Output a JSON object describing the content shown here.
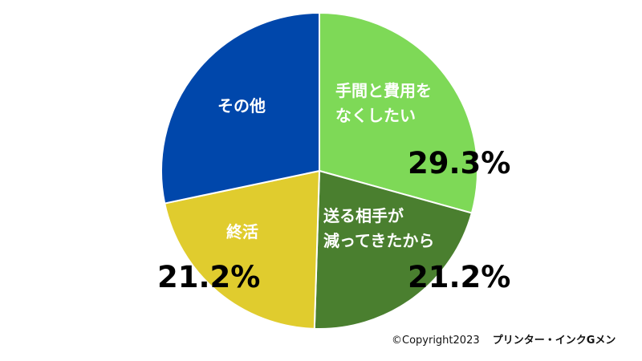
{
  "chart_data": {
    "type": "pie",
    "slices": [
      {
        "label_lines": [
          "手間と費用を",
          "なくしたい"
        ],
        "value": 29.3,
        "value_label": "29.3%",
        "color": "#7ED957"
      },
      {
        "label_lines": [
          "送る相手が",
          "減ってきたから"
        ],
        "value": 21.2,
        "value_label": "21.2%",
        "color": "#4A7F2F"
      },
      {
        "label_lines": [
          "終活"
        ],
        "value": 21.2,
        "value_label": "21.2%",
        "color": "#E0CC2E"
      },
      {
        "label_lines": [
          "その他"
        ],
        "value": 28.3,
        "value_label": "",
        "color": "#0047AB"
      }
    ],
    "start_angle_deg": 0,
    "direction": "clockwise"
  },
  "footer": {
    "copyright": "©Copyright2023",
    "owner": "プリンター・インクGメン"
  }
}
